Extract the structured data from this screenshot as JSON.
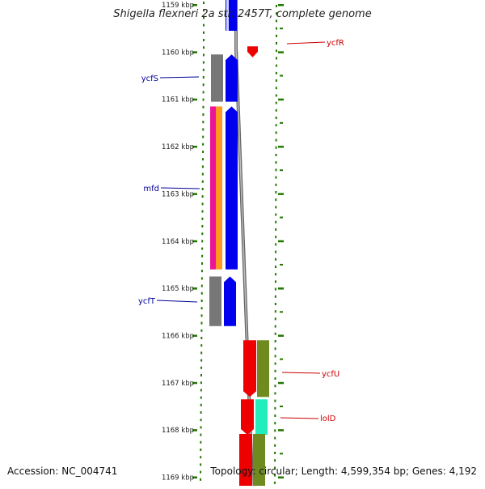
{
  "title": "Shigella flexneri 2a str. 2457T, complete genome",
  "footer": {
    "accession": "Accession: NC_004741",
    "topology": "Topology: circular",
    "length": "Length: 4,599,354 bp",
    "genes": "Genes: 4,192"
  },
  "scale": {
    "unit": "kbp",
    "ticks": [
      1159,
      1160,
      1161,
      1162,
      1163,
      1164,
      1165,
      1166,
      1167,
      1168,
      1169
    ]
  },
  "genes_left": [
    {
      "name": "ycfS",
      "start_kbp": 1160.05,
      "end_kbp": 1161.05,
      "strand": "+",
      "color": "#0000ee"
    },
    {
      "name": "mfd",
      "start_kbp": 1161.15,
      "end_kbp": 1164.6,
      "strand": "+",
      "color": "#0000ee"
    },
    {
      "name": "ycfT",
      "start_kbp": 1164.75,
      "end_kbp": 1165.8,
      "strand": "+",
      "color": "#0000ee"
    }
  ],
  "genes_right": [
    {
      "name": "ycfR",
      "start_kbp": 1159.88,
      "end_kbp": 1160.06,
      "strand": "-",
      "color": "#ee0000"
    },
    {
      "name": "ycfU",
      "start_kbp": 1166.1,
      "end_kbp": 1167.3,
      "strand": "-",
      "color": "#ee0000"
    },
    {
      "name": "lolD",
      "start_kbp": 1167.35,
      "end_kbp": 1168.1,
      "strand": "-",
      "color": "#ee0000"
    }
  ],
  "colors": {
    "forward_gene": "#0000ee",
    "reverse_gene": "#ee0000",
    "label_forward": "#000099",
    "label_reverse": "#cc0000",
    "tick": "#227700",
    "backbone": "#888888",
    "cog_gray": "#777777",
    "cog_magenta": "#ee1499",
    "cog_orange": "#ff9922",
    "cog_olive": "#6f8a1f",
    "cog_teal": "#22eebb"
  }
}
